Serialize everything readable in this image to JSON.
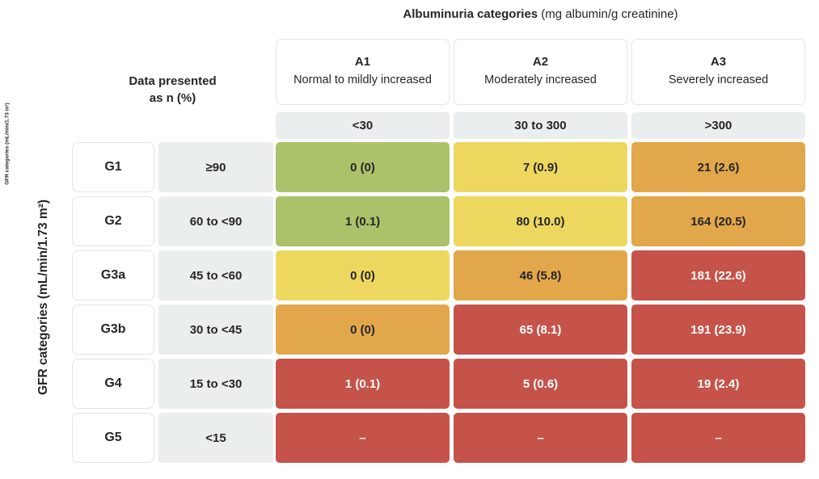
{
  "title": {
    "bold": "Albuminuria categories",
    "normal": " (mg albumin/g creatinine)"
  },
  "note": "Data presented\nas n (%)",
  "y_axis_label": "GFR categories (mL/min/1.73 m²)",
  "y_axis_label_small": "GFR categories (mL/min/1.73 m²)",
  "colors": {
    "green": "#abc26a",
    "yellow": "#edd75f",
    "orange": "#e2a74b",
    "red": "#c65349",
    "header_gray": "#ebeeee",
    "text_dark": "#262626",
    "text_light": "#ffffff"
  },
  "columns": [
    {
      "id": "A1",
      "desc": "Normal to mildly increased",
      "range": "<30"
    },
    {
      "id": "A2",
      "desc": "Moderately increased",
      "range": "30 to 300"
    },
    {
      "id": "A3",
      "desc": "Severely increased",
      "range": ">300"
    }
  ],
  "matrix": {
    "rows": [
      {
        "id": "G1",
        "range": "≥90",
        "cells": [
          {
            "label": "0 (0)",
            "bg": "#abc26a",
            "fg": "#262626"
          },
          {
            "label": "7 (0.9)",
            "bg": "#edd75f",
            "fg": "#262626"
          },
          {
            "label": "21 (2.6)",
            "bg": "#e2a74b",
            "fg": "#262626"
          }
        ]
      },
      {
        "id": "G2",
        "range": "60 to <90",
        "cells": [
          {
            "label": "1 (0.1)",
            "bg": "#abc26a",
            "fg": "#262626"
          },
          {
            "label": "80 (10.0)",
            "bg": "#edd75f",
            "fg": "#262626"
          },
          {
            "label": "164 (20.5)",
            "bg": "#e2a74b",
            "fg": "#262626"
          }
        ]
      },
      {
        "id": "G3a",
        "range": "45 to <60",
        "cells": [
          {
            "label": "0 (0)",
            "bg": "#edd75f",
            "fg": "#262626"
          },
          {
            "label": "46 (5.8)",
            "bg": "#e2a74b",
            "fg": "#262626"
          },
          {
            "label": "181 (22.6)",
            "bg": "#c65349",
            "fg": "#ffffff"
          }
        ]
      },
      {
        "id": "G3b",
        "range": "30 to <45",
        "cells": [
          {
            "label": "0 (0)",
            "bg": "#e2a74b",
            "fg": "#262626"
          },
          {
            "label": "65 (8.1)",
            "bg": "#c65349",
            "fg": "#ffffff"
          },
          {
            "label": "191 (23.9)",
            "bg": "#c65349",
            "fg": "#ffffff"
          }
        ]
      },
      {
        "id": "G4",
        "range": "15 to <30",
        "cells": [
          {
            "label": "1 (0.1)",
            "bg": "#c65349",
            "fg": "#ffffff"
          },
          {
            "label": "5 (0.6)",
            "bg": "#c65349",
            "fg": "#ffffff"
          },
          {
            "label": "19 (2.4)",
            "bg": "#c65349",
            "fg": "#ffffff"
          }
        ]
      },
      {
        "id": "G5",
        "range": "<15",
        "cells": [
          {
            "label": "–",
            "bg": "#c65349",
            "fg": "#ffffff"
          },
          {
            "label": "–",
            "bg": "#c65349",
            "fg": "#ffffff"
          },
          {
            "label": "–",
            "bg": "#c65349",
            "fg": "#ffffff"
          }
        ]
      }
    ]
  },
  "chart_data": {
    "type": "heatmap",
    "title": "Albuminuria categories (mg albumin/g creatinine)",
    "subtitle": "Data presented as n (%)",
    "xlabel": "Albuminuria categories (mg albumin/g creatinine)",
    "ylabel": "GFR categories (mL/min/1.73 m²)",
    "columns": [
      {
        "id": "A1",
        "label": "Normal to mildly increased",
        "range": "<30"
      },
      {
        "id": "A2",
        "label": "Moderately increased",
        "range": "30 to 300"
      },
      {
        "id": "A3",
        "label": "Severely increased",
        "range": ">300"
      }
    ],
    "rows": [
      {
        "id": "G1",
        "range": "≥90"
      },
      {
        "id": "G2",
        "range": "60 to <90"
      },
      {
        "id": "G3a",
        "range": "45 to <60"
      },
      {
        "id": "G3b",
        "range": "30 to <45"
      },
      {
        "id": "G4",
        "range": "15 to <30"
      },
      {
        "id": "G5",
        "range": "<15"
      }
    ],
    "values_n": [
      [
        0,
        7,
        21
      ],
      [
        1,
        80,
        164
      ],
      [
        0,
        46,
        181
      ],
      [
        0,
        65,
        191
      ],
      [
        1,
        5,
        19
      ],
      [
        null,
        null,
        null
      ]
    ],
    "values_pct": [
      [
        0,
        0.9,
        2.6
      ],
      [
        0.1,
        10.0,
        20.5
      ],
      [
        0,
        5.8,
        22.6
      ],
      [
        0,
        8.1,
        23.9
      ],
      [
        0.1,
        0.6,
        2.4
      ],
      [
        null,
        null,
        null
      ]
    ],
    "cell_labels": [
      [
        "0 (0)",
        "7 (0.9)",
        "21 (2.6)"
      ],
      [
        "1 (0.1)",
        "80 (10.0)",
        "164 (20.5)"
      ],
      [
        "0 (0)",
        "46 (5.8)",
        "181 (22.6)"
      ],
      [
        "0 (0)",
        "65 (8.1)",
        "191 (23.9)"
      ],
      [
        "1 (0.1)",
        "5 (0.6)",
        "19 (2.4)"
      ],
      [
        "–",
        "–",
        "–"
      ]
    ],
    "risk_levels": [
      [
        "green",
        "yellow",
        "orange"
      ],
      [
        "green",
        "yellow",
        "orange"
      ],
      [
        "yellow",
        "orange",
        "red"
      ],
      [
        "orange",
        "red",
        "red"
      ],
      [
        "red",
        "red",
        "red"
      ],
      [
        "red",
        "red",
        "red"
      ]
    ],
    "risk_colors": {
      "green": "#abc26a",
      "yellow": "#edd75f",
      "orange": "#e2a74b",
      "red": "#c65349"
    },
    "legend_position": "none",
    "grid": "off"
  }
}
